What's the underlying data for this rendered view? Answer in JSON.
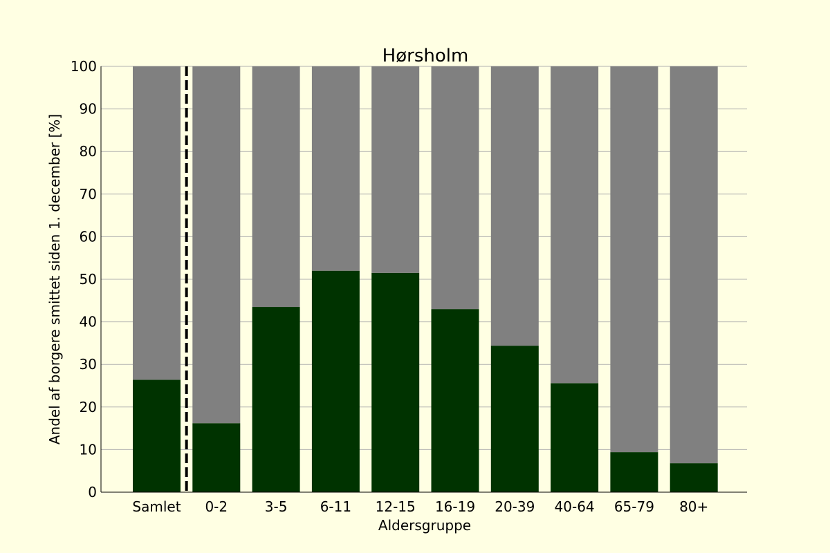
{
  "chart_data": {
    "type": "bar",
    "stacked": true,
    "title": "Hørsholm",
    "xlabel": "Aldersgruppe",
    "ylabel": "Andel af borgere smittet siden 1. december [%]",
    "ylim": [
      0,
      100
    ],
    "yticks": [
      0,
      10,
      20,
      30,
      40,
      50,
      60,
      70,
      80,
      90,
      100
    ],
    "categories": [
      "Samlet",
      "0-2",
      "3-5",
      "6-11",
      "12-15",
      "16-19",
      "20-39",
      "40-64",
      "65-79",
      "80+"
    ],
    "series": [
      {
        "values": [
          26.4,
          16.2,
          43.5,
          52.0,
          51.5,
          43.0,
          34.4,
          25.6,
          9.4,
          6.8
        ],
        "color": "#003300"
      },
      {
        "values": [
          73.6,
          83.8,
          56.5,
          48.0,
          48.5,
          57.0,
          65.6,
          74.4,
          90.6,
          93.2
        ],
        "color": "#808080"
      }
    ],
    "grid": "horizontal",
    "grid_color": "#b0b0b0",
    "separator": {
      "after_category": "Samlet",
      "style": "dashed",
      "color": "#000000"
    },
    "background_color": "#ffffe3"
  }
}
